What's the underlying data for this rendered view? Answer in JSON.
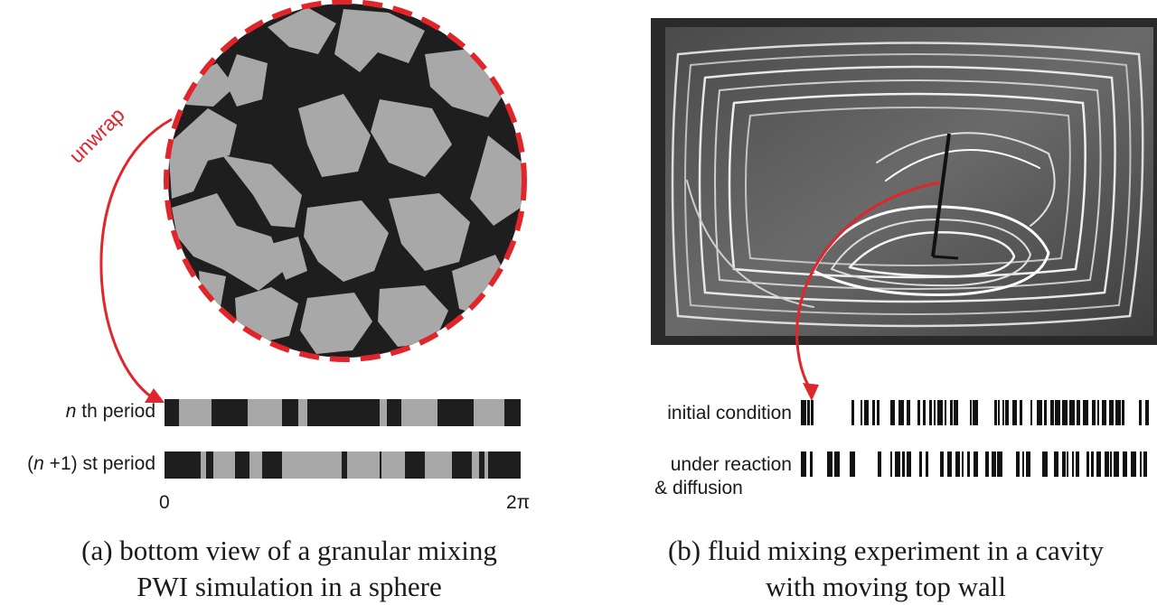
{
  "panel_a": {
    "unwrap_label": "unwrap",
    "row1": {
      "label_n": "n",
      "label_rest": " th period"
    },
    "row2": {
      "label_open": "(",
      "label_n": "n",
      "label_rest": " +1) st period"
    },
    "axis_start": "0",
    "axis_end": "2π",
    "caption_line1": "(a) bottom view of a granular mixing",
    "caption_line2": "PWI simulation in a sphere",
    "colors": {
      "dark": "#1e1e1e",
      "light": "#a8a8a8",
      "accent": "#e0262b"
    }
  },
  "panel_b": {
    "row1_label": "initial condition",
    "row2_label_line1": "under reaction",
    "row2_label_line2": "& diffusion",
    "caption_line1": "(b) fluid mixing experiment in a cavity",
    "caption_line2": "with moving top wall",
    "colors": {
      "dark": "#111111",
      "accent": "#e0262b"
    }
  }
}
